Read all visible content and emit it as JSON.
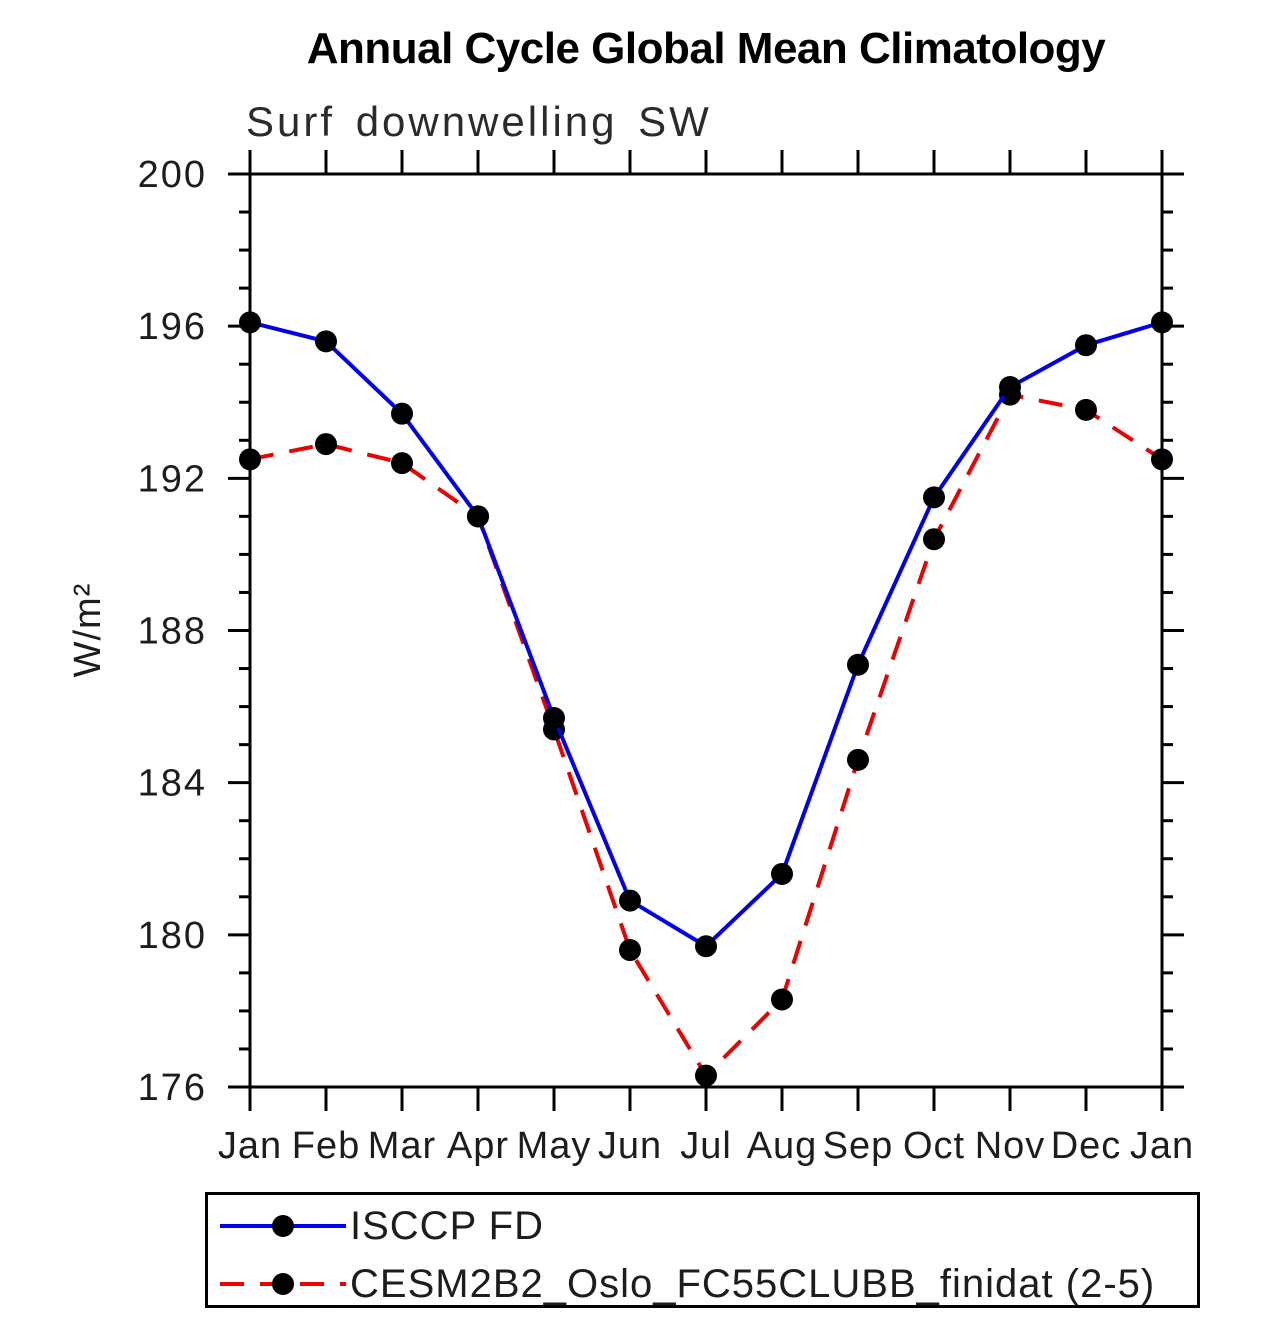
{
  "chart_data": {
    "type": "line",
    "title": "Annual Cycle Global Mean Climatology",
    "subtitle": "Surf downwelling SW",
    "ylabel": "W/m²",
    "xlabel": "",
    "x_tick_labels": [
      "Jan",
      "Feb",
      "Mar",
      "Apr",
      "May",
      "Jun",
      "Jul",
      "Aug",
      "Sep",
      "Oct",
      "Nov",
      "Dec",
      "Jan"
    ],
    "ylim": [
      176,
      200
    ],
    "y_major_ticks": [
      176,
      180,
      184,
      188,
      192,
      196,
      200
    ],
    "y_minor_step": 1,
    "grid": "off",
    "legend_position": "bottom",
    "axis_color": "#000000",
    "series": [
      {
        "name": "ISCCP FD",
        "color": "#0000ee",
        "line_style": "solid",
        "marker": "circle",
        "marker_color": "#000000",
        "values": [
          196.1,
          195.6,
          193.7,
          191.0,
          185.7,
          180.9,
          179.7,
          181.6,
          187.1,
          191.5,
          194.4,
          195.5,
          196.1
        ]
      },
      {
        "name": "CESM2B2_Oslo_FC55CLUBB_finidat (2-5)",
        "color": "#ee0000",
        "line_style": "dashed",
        "marker": "circle",
        "marker_color": "#000000",
        "values": [
          192.5,
          192.9,
          192.4,
          191.0,
          185.4,
          179.6,
          176.3,
          178.3,
          184.6,
          190.4,
          194.2,
          193.8,
          192.5
        ]
      }
    ]
  }
}
